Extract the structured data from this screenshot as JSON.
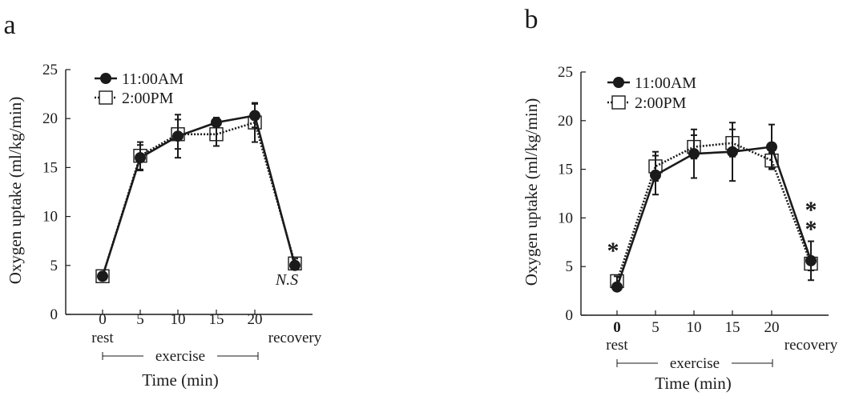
{
  "chart_data": [
    {
      "panel_label": "a",
      "type": "line",
      "xlabel": "Time (min)",
      "ylabel": "Oxygen uptake (ml/kg/min)",
      "ylim": [
        0,
        25
      ],
      "yticks": [
        0,
        5,
        10,
        15,
        20,
        25
      ],
      "categories": [
        "0",
        "5",
        "10",
        "15",
        "20",
        "recovery"
      ],
      "rest_label": "rest",
      "exercise_label": "exercise",
      "annotation": "N.S",
      "legend_position": "top-left",
      "series": [
        {
          "name": "11:00AM",
          "marker": "filled-circle",
          "line": "solid",
          "values": [
            3.9,
            16.0,
            18.2,
            19.6,
            20.3,
            5.0
          ],
          "error": [
            0.3,
            1.3,
            2.2,
            0.5,
            1.2,
            0.4
          ]
        },
        {
          "name": "2:00PM",
          "marker": "open-square",
          "line": "dotted",
          "values": [
            3.9,
            16.2,
            18.4,
            18.4,
            19.6,
            5.2
          ],
          "error": [
            0.3,
            1.4,
            1.5,
            1.2,
            2.0,
            0.5
          ]
        }
      ]
    },
    {
      "panel_label": "b",
      "type": "line",
      "xlabel": "Time (min)",
      "ylabel": "Oxygen uptake (ml/kg/min)",
      "ylim": [
        0,
        25
      ],
      "yticks": [
        0,
        5,
        10,
        15,
        20,
        25
      ],
      "categories": [
        "0",
        "5",
        "10",
        "15",
        "20",
        "recovery"
      ],
      "rest_label": "rest",
      "exercise_label": "exercise",
      "legend_position": "top-left",
      "significance": [
        {
          "category": "0",
          "mark": "*"
        },
        {
          "category": "recovery",
          "mark": "**"
        }
      ],
      "series": [
        {
          "name": "11:00AM",
          "marker": "filled-circle",
          "line": "solid",
          "values": [
            2.9,
            14.4,
            16.6,
            16.8,
            17.3,
            5.6
          ],
          "error": [
            0.3,
            2.0,
            2.5,
            3.0,
            2.3,
            2.0
          ]
        },
        {
          "name": "2:00PM",
          "marker": "open-square",
          "line": "dotted",
          "values": [
            3.5,
            15.3,
            17.3,
            17.7,
            15.9,
            5.3
          ],
          "error": [
            0.5,
            1.5,
            1.2,
            1.4,
            0.8,
            0.7
          ]
        }
      ]
    }
  ]
}
